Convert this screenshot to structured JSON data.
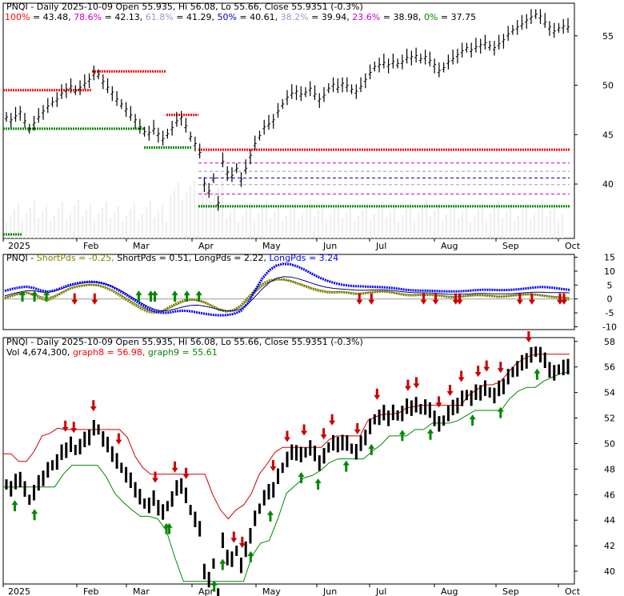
{
  "chart_data": [
    {
      "type": "line",
      "title": "PNQI - Daily 2025-10-09 Open 55.935, Hi 56.08, Lo 55.66, Close 55.9351 (-0.3%)",
      "fib_levels": [
        {
          "label": "100%",
          "value": 43.48,
          "color": "#ff0000"
        },
        {
          "label": "78.6%",
          "value": 42.13,
          "color": "#cc00cc"
        },
        {
          "label": "61.8%",
          "value": 41.29,
          "color": "#9999cc"
        },
        {
          "label": "50%",
          "value": 40.61,
          "color": "#0000cc"
        },
        {
          "label": "38.2%",
          "value": 39.94,
          "color": "#9999cc"
        },
        {
          "label": "23.6%",
          "value": 38.98,
          "color": "#cc00cc"
        },
        {
          "label": "0%",
          "value": 37.75,
          "color": "#008800"
        }
      ],
      "x_labels": [
        "2025",
        "Feb",
        "Mar",
        "Apr",
        "May",
        "Jun",
        "Jul",
        "Aug",
        "Sep",
        "Oct"
      ],
      "y_ticks": [
        40,
        45,
        50,
        55
      ],
      "ylim": [
        34.5,
        58.3
      ],
      "prices": [
        46.8,
        46.5,
        46.9,
        47.3,
        46.4,
        45.6,
        46.2,
        46.8,
        47.4,
        47.9,
        48.3,
        48.6,
        49.2,
        49.6,
        49.9,
        49.5,
        49.8,
        50.2,
        50.6,
        51.2,
        51.1,
        50.4,
        49.8,
        49.3,
        48.6,
        48.1,
        47.6,
        47.0,
        46.5,
        45.8,
        45.3,
        45.2,
        45.6,
        45.1,
        44.6,
        45.1,
        45.7,
        46.4,
        46.8,
        45.9,
        44.8,
        44.1,
        43.2,
        40.1,
        39.3,
        40.6,
        38.1,
        42.3,
        41.2,
        40.9,
        41.6,
        40.5,
        41.6,
        42.9,
        44.1,
        44.9,
        45.8,
        46.1,
        46.5,
        47.4,
        48.1,
        48.8,
        49.2,
        49.4,
        49.1,
        49.3,
        49.7,
        49.1,
        48.6,
        49.0,
        49.7,
        50.1,
        49.8,
        50.2,
        50.0,
        49.6,
        49.4,
        49.9,
        50.6,
        51.3,
        51.9,
        52.1,
        52.3,
        52.1,
        52.4,
        52.2,
        52.4,
        52.8,
        52.9,
        53.0,
        52.7,
        52.9,
        52.5,
        52.1,
        51.5,
        51.8,
        52.4,
        52.7,
        53.1,
        53.5,
        53.8,
        53.6,
        53.9,
        54.1,
        54.3,
        54.0,
        53.8,
        54.2,
        54.6,
        55.2,
        55.6,
        55.9,
        56.2,
        56.6,
        56.9,
        57.2,
        57.0,
        56.4,
        55.9,
        55.5,
        55.8,
        56.0,
        55.9
      ],
      "volume_label": "",
      "lower_label": ""
    },
    {
      "type": "line",
      "title": "PNQI - ShortPds = -0.25, ShortPds = 0.51, LongPds = 2.22, LongPds = 3.24",
      "legend": [
        {
          "text": "PNQI - ",
          "color": "#000000"
        },
        {
          "text": "ShortPds = -0.25, ",
          "color": "#808000"
        },
        {
          "text": "ShortPds = 0.51, ",
          "color": "#000000"
        },
        {
          "text": "LongPds = 2.22, ",
          "color": "#000000"
        },
        {
          "text": "LongPds = 3.24",
          "color": "#0000ff"
        }
      ],
      "y_ticks": [
        15,
        10,
        5,
        0,
        -5,
        -10
      ],
      "ylim": [
        -11,
        16
      ],
      "series": [
        {
          "name": "ShortPds",
          "values": [
            0.3,
            1.1,
            1.9,
            2.2,
            1.5,
            0.2,
            -0.5,
            0.8,
            2.2,
            3.6,
            4.4,
            4.8,
            5.1,
            4.9,
            4.1,
            3.0,
            1.4,
            -0.3,
            -1.9,
            -3.4,
            -4.6,
            -5.0,
            -4.4,
            -3.0,
            -1.6,
            -0.6,
            -0.1,
            -0.4,
            -1.3,
            -2.6,
            -3.9,
            -4.5,
            -4.0,
            -2.4,
            0.5,
            3.1,
            5.4,
            6.6,
            7.1,
            7.0,
            6.4,
            5.5,
            4.6,
            3.6,
            2.9,
            2.4,
            2.3,
            2.5,
            2.2,
            1.8,
            1.9,
            2.3,
            2.6,
            2.7,
            2.4,
            1.9,
            1.4,
            1.3,
            1.4,
            1.5,
            1.4,
            1.1,
            0.7,
            0.6,
            0.9,
            1.2,
            1.4,
            1.3,
            1.1,
            0.8,
            0.9,
            1.2,
            1.5,
            1.7,
            1.6,
            1.3,
            0.9,
            0.6,
            0.4,
            -0.25
          ]
        },
        {
          "name": "ShortPds",
          "values": [
            0.6,
            1.3,
            2.0,
            2.4,
            1.9,
            0.9,
            0.4,
            1.2,
            2.5,
            3.8,
            4.6,
            5.0,
            5.2,
            5.0,
            4.3,
            3.3,
            1.9,
            0.3,
            -1.3,
            -2.8,
            -4.0,
            -4.7,
            -4.5,
            -3.4,
            -2.1,
            -1.0,
            -0.4,
            -0.5,
            -1.2,
            -2.3,
            -3.5,
            -4.2,
            -4.1,
            -2.9,
            -0.4,
            2.2,
            4.6,
            6.1,
            6.8,
            6.9,
            6.5,
            5.7,
            4.9,
            4.0,
            3.3,
            2.8,
            2.6,
            2.6,
            2.4,
            2.1,
            2.1,
            2.4,
            2.6,
            2.7,
            2.5,
            2.1,
            1.7,
            1.5,
            1.5,
            1.6,
            1.5,
            1.3,
            1.0,
            0.9,
            1.0,
            1.2,
            1.4,
            1.4,
            1.2,
            1.0,
            1.0,
            1.2,
            1.4,
            1.6,
            1.6,
            1.4,
            1.1,
            0.9,
            0.7,
            0.51
          ]
        },
        {
          "name": "LongPds",
          "values": [
            1.1,
            1.8,
            2.4,
            2.9,
            3.0,
            2.5,
            2.3,
            2.8,
            3.7,
            4.6,
            5.3,
            5.8,
            6.1,
            6.0,
            5.5,
            4.6,
            3.4,
            1.9,
            0.3,
            -1.3,
            -2.7,
            -3.8,
            -4.3,
            -4.1,
            -3.5,
            -2.8,
            -2.3,
            -2.2,
            -2.6,
            -3.2,
            -3.9,
            -4.3,
            -4.3,
            -3.6,
            -1.8,
            0.8,
            3.6,
            5.9,
            7.4,
            8.0,
            7.9,
            7.3,
            6.5,
            5.6,
            4.8,
            4.2,
            3.8,
            3.6,
            3.4,
            3.2,
            3.1,
            3.2,
            3.3,
            3.3,
            3.1,
            2.8,
            2.5,
            2.3,
            2.2,
            2.2,
            2.1,
            1.9,
            1.7,
            1.6,
            1.7,
            1.8,
            2.0,
            2.0,
            1.9,
            1.8,
            1.8,
            1.9,
            2.1,
            2.3,
            2.4,
            2.4,
            2.3,
            2.3,
            2.3,
            2.22
          ]
        },
        {
          "name": "LongPds",
          "values": [
            2.9,
            3.6,
            4.1,
            4.4,
            4.0,
            3.1,
            2.6,
            3.1,
            4.0,
            5.0,
            5.6,
            6.0,
            6.2,
            6.0,
            5.4,
            4.4,
            3.0,
            1.5,
            -0.2,
            -1.9,
            -3.4,
            -4.5,
            -5.0,
            -4.9,
            -4.4,
            -4.2,
            -4.4,
            -4.9,
            -5.3,
            -5.7,
            -5.9,
            -5.8,
            -5.4,
            -4.3,
            -1.5,
            3.0,
            7.3,
            10.3,
            12.0,
            12.6,
            12.4,
            11.6,
            10.4,
            9.0,
            7.7,
            6.6,
            5.8,
            5.2,
            4.8,
            4.6,
            4.5,
            4.4,
            4.3,
            4.2,
            4.0,
            3.7,
            3.3,
            3.1,
            3.0,
            3.0,
            2.9,
            2.8,
            2.7,
            2.7,
            2.8,
            3.0,
            3.2,
            3.3,
            3.3,
            3.2,
            3.2,
            3.3,
            3.5,
            3.8,
            4.1,
            4.3,
            4.2,
            3.9,
            3.6,
            3.24
          ]
        }
      ],
      "buy_arrows": [
        4,
        7,
        10,
        33,
        36,
        37,
        42,
        45,
        48
      ],
      "sell_arrows": [
        17,
        22,
        88,
        91,
        104,
        107,
        112,
        113,
        128,
        131,
        138,
        139
      ]
    },
    {
      "type": "line",
      "title": "PNQI - Daily 2025-10-09 Open 55.935, Hi 56.08, Lo 55.66, Close 55.9351 (-0.3%)",
      "info": "Vol 4,674,300",
      "legend": [
        {
          "text": "graph8 = 56.98",
          "color": "#ff0000"
        },
        {
          "text": "graph9 = 55.61",
          "color": "#008800"
        }
      ],
      "y_ticks": [
        40,
        42,
        44,
        46,
        48,
        50,
        52,
        54,
        56,
        58
      ],
      "ylim": [
        39,
        58.3
      ],
      "series": [
        {
          "name": "graph8",
          "values": [
            49.2,
            49.2,
            48.6,
            48.6,
            49.4,
            50.6,
            50.8,
            51.2,
            51.1,
            51.1,
            51.1,
            51.1,
            51.1,
            51.1,
            51.1,
            51.1,
            50.5,
            49.0,
            48.1,
            47.6,
            47.6,
            47.6,
            47.6,
            47.6,
            47.6,
            47.6,
            47.6,
            46.0,
            44.8,
            44.1,
            44.8,
            45.2,
            46.1,
            47.6,
            48.4,
            49.3,
            49.7,
            49.7,
            49.7,
            49.7,
            49.7,
            49.7,
            50.3,
            50.6,
            50.6,
            50.6,
            50.6,
            51.8,
            52.1,
            52.3,
            52.3,
            52.4,
            52.8,
            52.9,
            53.0,
            53.0,
            53.0,
            53.0,
            53.0,
            53.0,
            53.8,
            54.2,
            54.6,
            54.6,
            54.8,
            55.5,
            56.2,
            56.6,
            56.9,
            57.0,
            57.0,
            57.0,
            57.0,
            57.0
          ]
        },
        {
          "name": "graph9",
          "values": [
            46.6,
            46.6,
            46.6,
            46.6,
            46.6,
            46.6,
            46.6,
            47.6,
            48.3,
            48.3,
            48.3,
            48.3,
            47.4,
            46.1,
            45.4,
            44.8,
            44.3,
            44.3,
            44.1,
            43.2,
            41.1,
            39.2,
            39.2,
            39.2,
            39.2,
            39.2,
            39.2,
            39.2,
            39.2,
            41.2,
            42.2,
            42.4,
            44.1,
            46.1,
            46.7,
            47.3,
            47.5,
            47.9,
            48.5,
            48.8,
            48.8,
            48.8,
            48.8,
            49.4,
            49.9,
            50.6,
            50.6,
            50.6,
            51.1,
            51.1,
            51.6,
            51.6,
            51.6,
            51.8,
            52.2,
            52.6,
            52.6,
            52.6,
            52.6,
            53.5,
            54.1,
            54.4,
            54.4,
            54.9,
            55.2,
            55.5,
            55.61
          ]
        }
      ],
      "buy_arrows": [
        3,
        10,
        57,
        58,
        72,
        74,
        77,
        87,
        94,
        105,
        111,
        121,
        130,
        141,
        151,
        166,
        176,
        189
      ],
      "sell_arrows": [
        21,
        24,
        31,
        40,
        53,
        60,
        64,
        81,
        84,
        95,
        100,
        106,
        113,
        116,
        125,
        132,
        143,
        146,
        154,
        158,
        162,
        168,
        171,
        176,
        186
      ]
    }
  ]
}
